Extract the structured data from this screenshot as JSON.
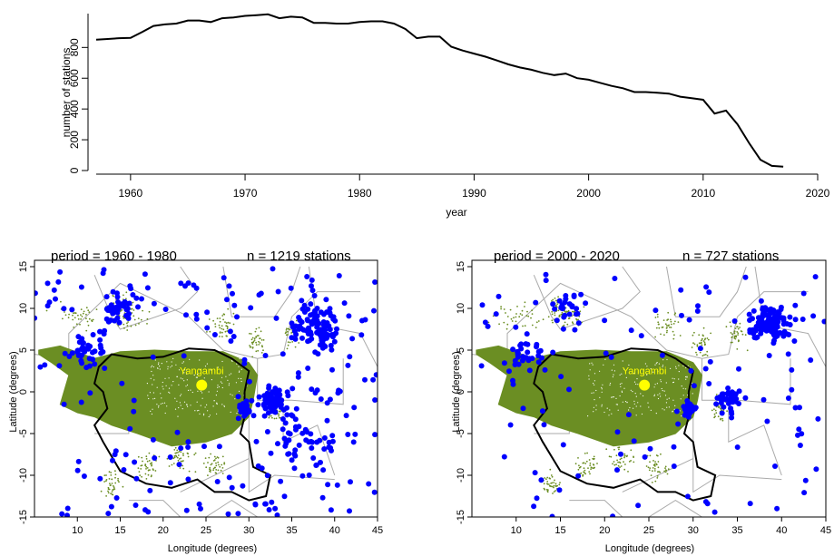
{
  "chart_data": [
    {
      "type": "line",
      "title": "",
      "xlabel": "year",
      "ylabel": "number of stations",
      "xlim": [
        1957,
        2020
      ],
      "ylim": [
        0,
        1020
      ],
      "x_ticks": [
        "1960",
        "1970",
        "1980",
        "1990",
        "2000",
        "2010",
        "2020"
      ],
      "y_ticks": [
        "0",
        "200",
        "400",
        "600",
        "800"
      ],
      "series": [
        {
          "x": [
            1957,
            1958,
            1959,
            1960,
            1961,
            1962,
            1963,
            1964,
            1965,
            1966,
            1967,
            1968,
            1969,
            1970,
            1971,
            1972,
            1973,
            1974,
            1975,
            1976,
            1977,
            1978,
            1979,
            1980,
            1981,
            1982,
            1983,
            1984,
            1985,
            1986,
            1987,
            1988,
            1989,
            1990,
            1991,
            1992,
            1993,
            1994,
            1995,
            1996,
            1997,
            1998,
            1999,
            2000,
            2001,
            2002,
            2003,
            2004,
            2005,
            2006,
            2007,
            2008,
            2009,
            2010,
            2011,
            2012,
            2013,
            2014,
            2015,
            2016,
            2017
          ],
          "values": [
            850,
            855,
            860,
            862,
            900,
            940,
            950,
            955,
            975,
            975,
            965,
            990,
            995,
            1005,
            1010,
            1015,
            990,
            1000,
            995,
            960,
            960,
            955,
            955,
            965,
            970,
            970,
            955,
            920,
            860,
            870,
            870,
            805,
            780,
            760,
            740,
            715,
            690,
            670,
            655,
            635,
            620,
            630,
            600,
            590,
            570,
            550,
            535,
            510,
            510,
            505,
            500,
            480,
            470,
            460,
            370,
            390,
            300,
            180,
            70,
            30,
            25
          ]
        }
      ]
    },
    {
      "type": "scatter",
      "title": "period =  1960 - 1980",
      "subtitle": "n =  1219  stations",
      "xlabel": "Longitude (degrees)",
      "ylabel": "Latitude (degrees)",
      "xlim": [
        5,
        45
      ],
      "ylim": [
        -15,
        15
      ],
      "x_ticks": [
        "10",
        "15",
        "20",
        "25",
        "30",
        "35",
        "40",
        "45"
      ],
      "y_ticks": [
        "-15",
        "-10",
        "-5",
        "0",
        "5",
        "10",
        "15"
      ],
      "station_count": 1219,
      "point_color": "#0000ff",
      "forest_color": "#6b8e23",
      "marker": {
        "name": "Yangambi",
        "lon": 24.5,
        "lat": 0.8,
        "color": "#ffff00"
      }
    },
    {
      "type": "scatter",
      "title": "period =  2000 - 2020",
      "subtitle": "n =  727  stations",
      "xlabel": "Longitude (degrees)",
      "ylabel": "Latitude (degrees)",
      "xlim": [
        5,
        45
      ],
      "ylim": [
        -15,
        15
      ],
      "x_ticks": [
        "10",
        "15",
        "20",
        "25",
        "30",
        "35",
        "40",
        "45"
      ],
      "y_ticks": [
        "-15",
        "-10",
        "-5",
        "0",
        "5",
        "10",
        "15"
      ],
      "station_count": 727,
      "point_color": "#0000ff",
      "forest_color": "#6b8e23",
      "marker": {
        "name": "Yangambi",
        "lon": 24.5,
        "lat": 0.8,
        "color": "#ffff00"
      }
    }
  ]
}
